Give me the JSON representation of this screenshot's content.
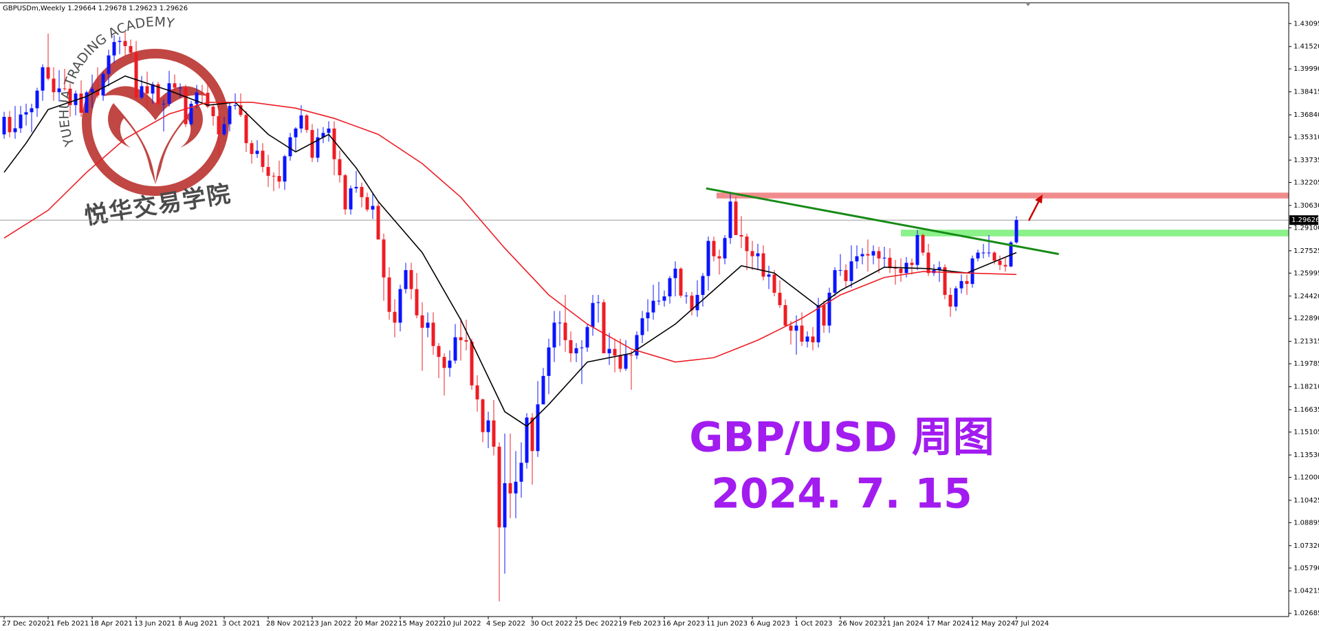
{
  "chart_data": {
    "type": "candlestick",
    "header": "GBPUSDm,Weekly  1.29664 1.29678 1.29623 1.29626",
    "title": "GBP/USD 周图",
    "subtitle": "2024. 7. 15",
    "logo_text": "YUEHUA TRADING ACADEMY",
    "logo_name": "悦华交易学院",
    "up_color": "#0a14ff",
    "down_color": "#ee1c24",
    "ylim": [
      1.0246,
      1.4452
    ],
    "yticks": [
      1.43095,
      {
        "value": 1.4152,
        "label": "1.41520"
      },
      {
        "value": 1.3999,
        "label": "1.39990"
      },
      1.38415,
      {
        "value": 1.3684,
        "label": "1.36840"
      },
      {
        "value": 1.3531,
        "label": "1.35310"
      },
      1.33735,
      1.32205,
      {
        "value": 1.3063,
        "label": "1.30630"
      },
      {
        "value": 1.291,
        "label": "1.29100"
      },
      1.27525,
      1.25995,
      {
        "value": 1.2442,
        "label": "1.24420"
      },
      {
        "value": 1.2289,
        "label": "1.22890"
      },
      1.21315,
      1.19785,
      {
        "value": 1.1821,
        "label": "1.18210"
      },
      1.16635,
      1.15105,
      {
        "value": 1.1353,
        "label": "1.13530"
      },
      {
        "value": 1.12,
        "label": "1.12000"
      },
      1.10425,
      1.08895,
      {
        "value": 1.0732,
        "label": "1.07320"
      },
      {
        "value": 1.0579,
        "label": "1.05790"
      },
      1.04215,
      1.02685
    ],
    "xticks": [
      {
        "value": 0,
        "label": "27 Dec 2020"
      },
      {
        "value": 8,
        "label": "21 Feb 2021"
      },
      {
        "value": 16,
        "label": "18 Apr 2021"
      },
      {
        "value": 24,
        "label": "13 Jun 2021"
      },
      {
        "value": 32,
        "label": "8 Aug 2021"
      },
      {
        "value": 40,
        "label": "3 Oct 2021"
      },
      {
        "value": 48,
        "label": "28 Nov 2021"
      },
      {
        "value": 56,
        "label": "23 Jan 2022"
      },
      {
        "value": 64,
        "label": "20 Mar 2022"
      },
      {
        "value": 72,
        "label": "15 May 2022"
      },
      {
        "value": 80,
        "label": "10 Jul 2022"
      },
      {
        "value": 88,
        "label": "4 Sep 2022"
      },
      {
        "value": 96,
        "label": "30 Oct 2022"
      },
      {
        "value": 104,
        "label": "25 Dec 2022"
      },
      {
        "value": 112,
        "label": "19 Feb 2023"
      },
      {
        "value": 120,
        "label": "16 Apr 2023"
      },
      {
        "value": 128,
        "label": "11 Jun 2023"
      },
      {
        "value": 136,
        "label": "6 Aug 2023"
      },
      {
        "value": 144,
        "label": "1 Oct 2023"
      },
      {
        "value": 152,
        "label": "26 Nov 2023"
      },
      {
        "value": 160,
        "label": "21 Jan 2024"
      },
      {
        "value": 168,
        "label": "17 Mar 2024"
      },
      {
        "value": 176,
        "label": "12 May 2024"
      },
      {
        "value": 184,
        "label": "7 Jul 2024"
      }
    ],
    "last_price": 1.29626,
    "ohlc": [
      [
        1.355,
        1.3705,
        1.352,
        1.367
      ],
      [
        1.367,
        1.371,
        1.353,
        1.3565
      ],
      [
        1.3565,
        1.3745,
        1.352,
        1.3592
      ],
      [
        1.3592,
        1.3745,
        1.356,
        1.3686
      ],
      [
        1.3686,
        1.376,
        1.361,
        1.3702
      ],
      [
        1.3702,
        1.376,
        1.3565,
        1.3729
      ],
      [
        1.3729,
        1.387,
        1.367,
        1.385
      ],
      [
        1.385,
        1.403,
        1.378,
        1.401
      ],
      [
        1.401,
        1.4241,
        1.392,
        1.3932
      ],
      [
        1.3932,
        1.401,
        1.378,
        1.3839
      ],
      [
        1.3839,
        1.399,
        1.3775,
        1.3865
      ],
      [
        1.3865,
        1.4,
        1.385,
        1.3863
      ],
      [
        1.3863,
        1.39,
        1.367,
        1.3751
      ],
      [
        1.3751,
        1.385,
        1.368,
        1.383
      ],
      [
        1.383,
        1.392,
        1.367,
        1.3698
      ],
      [
        1.3698,
        1.385,
        1.37,
        1.3838
      ],
      [
        1.3838,
        1.396,
        1.373,
        1.3862
      ],
      [
        1.3862,
        1.401,
        1.38,
        1.3817
      ],
      [
        1.3817,
        1.398,
        1.378,
        1.3964
      ],
      [
        1.3964,
        1.413,
        1.388,
        1.4091
      ],
      [
        1.4091,
        1.423,
        1.404,
        1.4183
      ],
      [
        1.4183,
        1.422,
        1.41,
        1.419
      ],
      [
        1.419,
        1.425,
        1.409,
        1.4155
      ],
      [
        1.4155,
        1.42,
        1.407,
        1.411
      ],
      [
        1.411,
        1.419,
        1.379,
        1.3803
      ],
      [
        1.3803,
        1.395,
        1.379,
        1.388
      ],
      [
        1.388,
        1.398,
        1.373,
        1.383
      ],
      [
        1.383,
        1.391,
        1.376,
        1.3893
      ],
      [
        1.3893,
        1.391,
        1.374,
        1.376
      ],
      [
        1.376,
        1.379,
        1.357,
        1.376
      ],
      [
        1.376,
        1.3985,
        1.374,
        1.39
      ],
      [
        1.39,
        1.396,
        1.383,
        1.387
      ],
      [
        1.387,
        1.39,
        1.38,
        1.387
      ],
      [
        1.387,
        1.389,
        1.36,
        1.362
      ],
      [
        1.362,
        1.378,
        1.361,
        1.376
      ],
      [
        1.376,
        1.389,
        1.373,
        1.3837
      ],
      [
        1.3837,
        1.389,
        1.376,
        1.3835
      ],
      [
        1.3835,
        1.391,
        1.373,
        1.374
      ],
      [
        1.374,
        1.375,
        1.361,
        1.3675
      ],
      [
        1.3675,
        1.377,
        1.341,
        1.355
      ],
      [
        1.355,
        1.367,
        1.354,
        1.362
      ],
      [
        1.362,
        1.377,
        1.357,
        1.3745
      ],
      [
        1.3745,
        1.383,
        1.372,
        1.375
      ],
      [
        1.375,
        1.383,
        1.367,
        1.3683
      ],
      [
        1.3683,
        1.371,
        1.343,
        1.349
      ],
      [
        1.349,
        1.351,
        1.335,
        1.3416
      ],
      [
        1.3416,
        1.351,
        1.339,
        1.3438
      ],
      [
        1.3438,
        1.349,
        1.329,
        1.3327
      ],
      [
        1.3327,
        1.341,
        1.319,
        1.3266
      ],
      [
        1.3266,
        1.329,
        1.316,
        1.3265
      ],
      [
        1.3265,
        1.337,
        1.318,
        1.3227
      ],
      [
        1.3227,
        1.341,
        1.317,
        1.34
      ],
      [
        1.34,
        1.356,
        1.337,
        1.353
      ],
      [
        1.353,
        1.36,
        1.343,
        1.359
      ],
      [
        1.359,
        1.375,
        1.356,
        1.368
      ],
      [
        1.368,
        1.369,
        1.356,
        1.358
      ],
      [
        1.358,
        1.362,
        1.336,
        1.339
      ],
      [
        1.339,
        1.359,
        1.336,
        1.353
      ],
      [
        1.353,
        1.36,
        1.349,
        1.356
      ],
      [
        1.356,
        1.364,
        1.35,
        1.359
      ],
      [
        1.359,
        1.364,
        1.327,
        1.338
      ],
      [
        1.338,
        1.344,
        1.322,
        1.327
      ],
      [
        1.327,
        1.328,
        1.3,
        1.3036
      ],
      [
        1.3036,
        1.32,
        1.3,
        1.318
      ],
      [
        1.318,
        1.33,
        1.315,
        1.319
      ],
      [
        1.319,
        1.322,
        1.305,
        1.312
      ],
      [
        1.312,
        1.315,
        1.302,
        1.3035
      ],
      [
        1.3035,
        1.315,
        1.297,
        1.306
      ],
      [
        1.306,
        1.309,
        1.283,
        1.283
      ],
      [
        1.283,
        1.287,
        1.241,
        1.257
      ],
      [
        1.257,
        1.264,
        1.228,
        1.2334
      ],
      [
        1.2334,
        1.242,
        1.216,
        1.226
      ],
      [
        1.226,
        1.252,
        1.22,
        1.249
      ],
      [
        1.249,
        1.267,
        1.246,
        1.262
      ],
      [
        1.262,
        1.267,
        1.242,
        1.249
      ],
      [
        1.249,
        1.26,
        1.229,
        1.231
      ],
      [
        1.231,
        1.24,
        1.193,
        1.2225
      ],
      [
        1.2225,
        1.233,
        1.216,
        1.226
      ],
      [
        1.226,
        1.233,
        1.204,
        1.21
      ],
      [
        1.21,
        1.212,
        1.188,
        1.2025
      ],
      [
        1.2025,
        1.205,
        1.176,
        1.195
      ],
      [
        1.195,
        1.207,
        1.189,
        1.2
      ],
      [
        1.2,
        1.225,
        1.198,
        1.216
      ],
      [
        1.216,
        1.229,
        1.2,
        1.214
      ],
      [
        1.214,
        1.228,
        1.207,
        1.213
      ],
      [
        1.213,
        1.215,
        1.18,
        1.183
      ],
      [
        1.183,
        1.19,
        1.165,
        1.1734
      ],
      [
        1.1734,
        1.174,
        1.144,
        1.151
      ],
      [
        1.151,
        1.165,
        1.14,
        1.159
      ],
      [
        1.159,
        1.173,
        1.135,
        1.141
      ],
      [
        1.141,
        1.144,
        1.035,
        1.0857
      ],
      [
        1.0857,
        1.15,
        1.054,
        1.116
      ],
      [
        1.116,
        1.15,
        1.092,
        1.109
      ],
      [
        1.109,
        1.138,
        1.092,
        1.117
      ],
      [
        1.117,
        1.144,
        1.106,
        1.13
      ],
      [
        1.13,
        1.164,
        1.126,
        1.161
      ],
      [
        1.161,
        1.164,
        1.115,
        1.138
      ],
      [
        1.138,
        1.186,
        1.134,
        1.17
      ],
      [
        1.17,
        1.195,
        1.171,
        1.1895
      ],
      [
        1.1895,
        1.215,
        1.177,
        1.209
      ],
      [
        1.209,
        1.234,
        1.199,
        1.226
      ],
      [
        1.226,
        1.234,
        1.21,
        1.226
      ],
      [
        1.226,
        1.245,
        1.206,
        1.214
      ],
      [
        1.214,
        1.22,
        1.199,
        1.205
      ],
      [
        1.205,
        1.212,
        1.199,
        1.2085
      ],
      [
        1.2085,
        1.214,
        1.184,
        1.209
      ],
      [
        1.209,
        1.225,
        1.206,
        1.223
      ],
      [
        1.223,
        1.245,
        1.217,
        1.2395
      ],
      [
        1.2395,
        1.245,
        1.226,
        1.24
      ],
      [
        1.24,
        1.242,
        1.205,
        1.205
      ],
      [
        1.205,
        1.219,
        1.197,
        1.208
      ],
      [
        1.208,
        1.215,
        1.192,
        1.2035
      ],
      [
        1.2035,
        1.215,
        1.192,
        1.1944
      ],
      [
        1.1944,
        1.214,
        1.193,
        1.204
      ],
      [
        1.204,
        1.207,
        1.18,
        1.2035
      ],
      [
        1.2035,
        1.22,
        1.201,
        1.2175
      ],
      [
        1.2175,
        1.234,
        1.212,
        1.229
      ],
      [
        1.229,
        1.242,
        1.22,
        1.233
      ],
      [
        1.233,
        1.252,
        1.228,
        1.241
      ],
      [
        1.241,
        1.254,
        1.238,
        1.241
      ],
      [
        1.241,
        1.248,
        1.237,
        1.244
      ],
      [
        1.244,
        1.258,
        1.239,
        1.2565
      ],
      [
        1.2565,
        1.268,
        1.244,
        1.263
      ],
      [
        1.263,
        1.264,
        1.243,
        1.2445
      ],
      [
        1.2445,
        1.247,
        1.239,
        1.2445
      ],
      [
        1.2445,
        1.247,
        1.231,
        1.2345
      ],
      [
        1.2345,
        1.255,
        1.23,
        1.245
      ],
      [
        1.245,
        1.26,
        1.237,
        1.258
      ],
      [
        1.258,
        1.285,
        1.248,
        1.282
      ],
      [
        1.282,
        1.285,
        1.268,
        1.2715
      ],
      [
        1.2715,
        1.276,
        1.259,
        1.27
      ],
      [
        1.27,
        1.286,
        1.266,
        1.284
      ],
      [
        1.284,
        1.3142,
        1.28,
        1.309
      ],
      [
        1.309,
        1.312,
        1.286,
        1.286
      ],
      [
        1.286,
        1.299,
        1.277,
        1.285
      ],
      [
        1.285,
        1.287,
        1.262,
        1.275
      ],
      [
        1.275,
        1.282,
        1.262,
        1.2715
      ],
      [
        1.2715,
        1.28,
        1.262,
        1.2735
      ],
      [
        1.2735,
        1.279,
        1.255,
        1.2575
      ],
      [
        1.2575,
        1.265,
        1.249,
        1.259
      ],
      [
        1.259,
        1.262,
        1.244,
        1.2465
      ],
      [
        1.2465,
        1.255,
        1.236,
        1.238
      ],
      [
        1.238,
        1.242,
        1.223,
        1.224
      ],
      [
        1.224,
        1.227,
        1.211,
        1.2205
      ],
      [
        1.2205,
        1.231,
        1.204,
        1.224
      ],
      [
        1.224,
        1.233,
        1.21,
        1.213
      ],
      [
        1.213,
        1.22,
        1.209,
        1.2165
      ],
      [
        1.2165,
        1.223,
        1.207,
        1.2125
      ],
      [
        1.2125,
        1.243,
        1.209,
        1.238
      ],
      [
        1.238,
        1.241,
        1.219,
        1.224
      ],
      [
        1.224,
        1.25,
        1.219,
        1.2465
      ],
      [
        1.2465,
        1.264,
        1.244,
        1.262
      ],
      [
        1.262,
        1.273,
        1.258,
        1.262
      ],
      [
        1.262,
        1.266,
        1.25,
        1.2545
      ],
      [
        1.2545,
        1.279,
        1.25,
        1.268
      ],
      [
        1.268,
        1.279,
        1.263,
        1.2715
      ],
      [
        1.2715,
        1.277,
        1.266,
        1.273
      ],
      [
        1.273,
        1.283,
        1.261,
        1.272
      ],
      [
        1.272,
        1.279,
        1.266,
        1.275
      ],
      [
        1.275,
        1.278,
        1.26,
        1.27
      ],
      [
        1.27,
        1.278,
        1.264,
        1.2705
      ],
      [
        1.2705,
        1.277,
        1.26,
        1.2635
      ],
      [
        1.2635,
        1.269,
        1.252,
        1.263
      ],
      [
        1.263,
        1.27,
        1.254,
        1.26
      ],
      [
        1.26,
        1.271,
        1.257,
        1.267
      ],
      [
        1.267,
        1.27,
        1.259,
        1.2655
      ],
      [
        1.2655,
        1.2895,
        1.262,
        1.286
      ],
      [
        1.286,
        1.287,
        1.272,
        1.274
      ],
      [
        1.274,
        1.28,
        1.258,
        1.26
      ],
      [
        1.26,
        1.266,
        1.258,
        1.262
      ],
      [
        1.262,
        1.268,
        1.254,
        1.264
      ],
      [
        1.264,
        1.266,
        1.242,
        1.245
      ],
      [
        1.245,
        1.25,
        1.23,
        1.237
      ],
      [
        1.237,
        1.251,
        1.234,
        1.2495
      ],
      [
        1.2495,
        1.259,
        1.246,
        1.2545
      ],
      [
        1.2545,
        1.259,
        1.245,
        1.2525
      ],
      [
        1.2525,
        1.272,
        1.25,
        1.27
      ],
      [
        1.27,
        1.276,
        1.268,
        1.274
      ],
      [
        1.274,
        1.28,
        1.27,
        1.274
      ],
      [
        1.274,
        1.286,
        1.271,
        1.274
      ],
      [
        1.274,
        1.275,
        1.266,
        1.2685
      ],
      [
        1.2685,
        1.272,
        1.262,
        1.2655
      ],
      [
        1.2655,
        1.271,
        1.261,
        1.2645
      ],
      [
        1.2645,
        1.282,
        1.264,
        1.281
      ],
      [
        1.281,
        1.299,
        1.28,
        1.2963
      ]
    ],
    "lines": [
      {
        "color": "#000000",
        "x": [
          0,
          4,
          8,
          15,
          22,
          30,
          37,
          42,
          48,
          53,
          59,
          64,
          68,
          76,
          83,
          91,
          95,
          99,
          106,
          114,
          122,
          128,
          134,
          140,
          148,
          152,
          160,
          168,
          175,
          184
        ],
        "values": [
          1.329,
          1.349,
          1.372,
          1.381,
          1.395,
          1.385,
          1.375,
          1.377,
          1.355,
          1.343,
          1.355,
          1.332,
          1.309,
          1.274,
          1.228,
          1.165,
          1.155,
          1.17,
          1.199,
          1.205,
          1.225,
          1.245,
          1.265,
          1.26,
          1.237,
          1.248,
          1.264,
          1.263,
          1.26,
          1.274
        ]
      },
      {
        "color": "#ee1c24",
        "x": [
          0,
          8,
          15,
          22,
          30,
          37,
          45,
          53,
          60,
          68,
          76,
          83,
          91,
          99,
          106,
          114,
          122,
          129,
          137,
          145,
          152,
          160,
          167,
          175,
          184
        ],
        "values": [
          1.284,
          1.303,
          1.329,
          1.352,
          1.369,
          1.377,
          1.377,
          1.373,
          1.366,
          1.355,
          1.335,
          1.312,
          1.277,
          1.245,
          1.225,
          1.208,
          1.199,
          1.202,
          1.214,
          1.229,
          1.245,
          1.257,
          1.261,
          1.26,
          1.259
        ]
      }
    ],
    "zones": [
      {
        "color": "#f08080",
        "start": 129.5,
        "range": [
          1.3111,
          1.3151
        ]
      },
      {
        "color": "#7ef07e",
        "start": 163,
        "range": [
          1.2851,
          1.2897
        ]
      }
    ],
    "trendline": {
      "color": "#168a16",
      "x": [
        127.6,
        191.7
      ],
      "values": [
        1.318,
        1.273
      ]
    }
  }
}
